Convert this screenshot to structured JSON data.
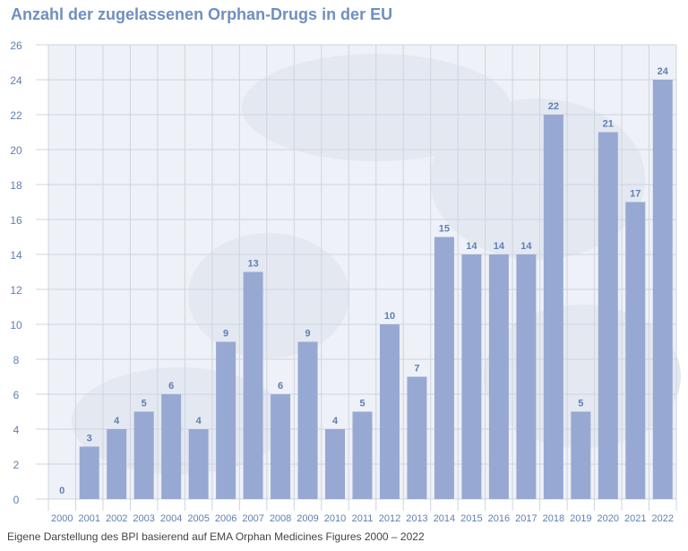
{
  "chart_data": {
    "type": "bar",
    "title": "Anzahl der zugelassenen Orphan-Drugs in der EU",
    "categories": [
      "2000",
      "2001",
      "2002",
      "2003",
      "2004",
      "2005",
      "2006",
      "2007",
      "2008",
      "2009",
      "2010",
      "2011",
      "2012",
      "2013",
      "2014",
      "2015",
      "2016",
      "2017",
      "2018",
      "2019",
      "2020",
      "2021",
      "2022"
    ],
    "values": [
      0,
      3,
      4,
      5,
      6,
      4,
      9,
      13,
      6,
      9,
      4,
      5,
      10,
      7,
      15,
      14,
      14,
      14,
      22,
      5,
      21,
      17,
      24
    ],
    "ylim": [
      0,
      26
    ],
    "yticks": [
      0,
      2,
      4,
      6,
      8,
      10,
      12,
      14,
      16,
      18,
      20,
      22,
      24,
      26
    ],
    "grid": true,
    "data_labels": true,
    "bar_color": "#97a9d2",
    "label_color": "#5f7fb3",
    "source": "Eigene Darstellung des BPI basierend auf EMA Orphan Medicines Figures 2000 – 2022"
  }
}
